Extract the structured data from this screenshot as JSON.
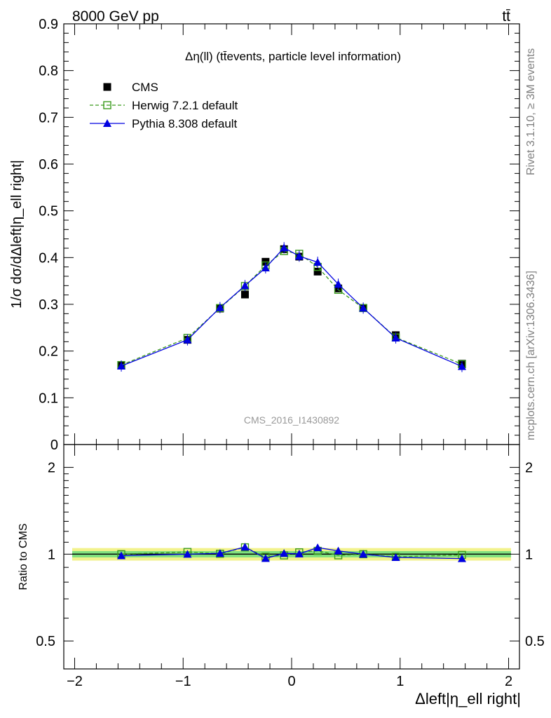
{
  "header": {
    "energy_label": "8000 GeV pp",
    "process_label": "tt̄"
  },
  "side_labels": {
    "rivet": "Rivet 3.1.10, ≥ 3M events",
    "mcplots": "mcplots.cern.ch [arXiv:1306.3436]"
  },
  "chart_data": {
    "type": "line",
    "title": "Δη(ll) (tt̄events, particle level information)",
    "analysis_id": "CMS_2016_I1430892",
    "ylabel": "1/σ dσ/dΔleft|η_ell right|",
    "xlabel": "Δleft|η_ell right|",
    "ratio_ylabel": "Ratio to CMS",
    "xlim": [
      -2.1,
      2.1
    ],
    "ylim": [
      0,
      0.9
    ],
    "ratio_ylim": [
      0.4,
      2.4
    ],
    "x_ticks": [
      -2,
      -1,
      0,
      1,
      2
    ],
    "x_tick_labels": [
      "−2",
      "−1",
      "0",
      "1",
      "2"
    ],
    "y_ticks": [
      0.1,
      0.2,
      0.3,
      0.4,
      0.5,
      0.6,
      0.7,
      0.8,
      0.9
    ],
    "y_tick_labels": [
      "0.1",
      "0.2",
      "0.3",
      "0.4",
      "0.5",
      "0.6",
      "0.7",
      "0.8",
      "0.9"
    ],
    "y_zero_label": "0",
    "ratio_ticks": [
      0.5,
      1,
      2
    ],
    "ratio_tick_labels": [
      "0.5",
      "1",
      "2"
    ],
    "x": [
      -1.57,
      -0.96,
      -0.66,
      -0.43,
      -0.24,
      -0.07,
      0.07,
      0.24,
      0.43,
      0.66,
      0.96,
      1.57
    ],
    "series": [
      {
        "name": "CMS",
        "role": "data",
        "color": "#000000",
        "values": [
          0.17,
          0.224,
          0.291,
          0.321,
          0.391,
          0.418,
          0.402,
          0.37,
          0.334,
          0.292,
          0.234,
          0.173
        ]
      },
      {
        "name": "Herwig 7.2.1 default",
        "role": "herwig",
        "color": "#3a9a1c",
        "values": [
          0.17,
          0.228,
          0.292,
          0.339,
          0.383,
          0.414,
          0.408,
          0.38,
          0.331,
          0.292,
          0.229,
          0.172
        ]
      },
      {
        "name": "Pythia 8.308 default",
        "role": "pythia",
        "color": "#0000e0",
        "values": [
          0.168,
          0.224,
          0.293,
          0.34,
          0.378,
          0.421,
          0.403,
          0.39,
          0.343,
          0.292,
          0.228,
          0.167
        ]
      }
    ],
    "ratio_band": {
      "inner": [
        0.975,
        1.025
      ],
      "outer": [
        0.95,
        1.05
      ],
      "inner_color": "#7fe07f",
      "outer_color": "#f2f28c"
    }
  }
}
